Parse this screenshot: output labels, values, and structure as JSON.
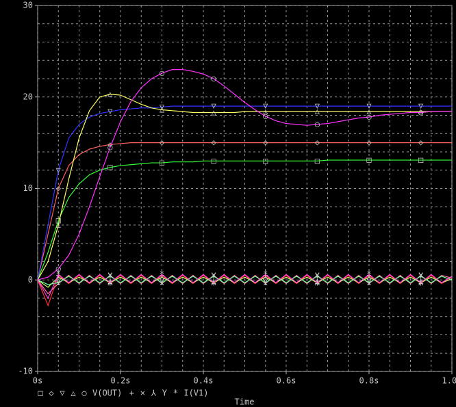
{
  "chart_data": {
    "type": "line",
    "xlabel": "Time",
    "x": [
      0,
      0.025,
      0.05,
      0.075,
      0.1,
      0.125,
      0.15,
      0.175,
      0.2,
      0.225,
      0.25,
      0.275,
      0.3,
      0.325,
      0.35,
      0.375,
      0.4,
      0.425,
      0.45,
      0.475,
      0.5,
      0.525,
      0.55,
      0.575,
      0.6,
      0.625,
      0.65,
      0.675,
      0.7,
      0.725,
      0.75,
      0.775,
      0.8,
      0.825,
      0.85,
      0.875,
      0.9,
      0.925,
      0.95,
      0.975,
      1
    ],
    "xlim": [
      0,
      1
    ],
    "xticks": [
      {
        "value": 0,
        "label": "0s"
      },
      {
        "value": 0.2,
        "label": "0.2s"
      },
      {
        "value": 0.4,
        "label": "0.4s"
      },
      {
        "value": 0.6,
        "label": "0.6s"
      },
      {
        "value": 0.8,
        "label": "0.8s"
      },
      {
        "value": 1,
        "label": "1.0s"
      }
    ],
    "ylim": [
      -10,
      30
    ],
    "yticks": [
      -10,
      0,
      10,
      20,
      30
    ],
    "grid": true,
    "groups": [
      {
        "name": "V(OUT)",
        "traces": [
          {
            "color": "#33ff33",
            "marker": "□",
            "values": [
              0,
              3,
              6.5,
              9,
              10.5,
              11.5,
              12,
              12.3,
              12.5,
              12.6,
              12.7,
              12.8,
              12.8,
              12.9,
              12.9,
              12.9,
              13,
              13,
              13,
              13,
              13,
              13,
              13,
              13,
              13,
              13,
              13,
              13,
              13.1,
              13.1,
              13.1,
              13.1,
              13.1,
              13.1,
              13.1,
              13.1,
              13.1,
              13.1,
              13.1,
              13.1,
              13.1
            ]
          },
          {
            "color": "#ff6060",
            "marker": "◇",
            "values": [
              0,
              5,
              10,
              12.5,
              13.7,
              14.3,
              14.6,
              14.8,
              14.9,
              15,
              15,
              15,
              15,
              15,
              15,
              15,
              15,
              15,
              15,
              15,
              15,
              15,
              15,
              15,
              15,
              15,
              15,
              15,
              15,
              15,
              15,
              15,
              15,
              15,
              15,
              15,
              15,
              15,
              15,
              15,
              15
            ]
          },
          {
            "color": "#3333ff",
            "marker": "▽",
            "values": [
              0,
              6,
              12,
              15.5,
              17,
              17.8,
              18.2,
              18.4,
              18.6,
              18.7,
              18.8,
              18.8,
              18.9,
              19,
              19,
              19,
              19,
              19,
              19,
              19,
              19,
              19,
              19,
              19,
              19,
              19,
              19,
              19,
              19,
              19,
              19,
              19,
              19,
              19,
              19,
              19,
              19,
              19,
              19,
              19,
              19
            ]
          },
          {
            "color": "#ffff66",
            "marker": "△",
            "values": [
              0,
              2,
              6,
              11,
              15.5,
              18.5,
              20,
              20.3,
              20.2,
              19.7,
              19.2,
              18.8,
              18.6,
              18.5,
              18.4,
              18.3,
              18.3,
              18.3,
              18.3,
              18.3,
              18.4,
              18.4,
              18.4,
              18.4,
              18.4,
              18.4,
              18.4,
              18.4,
              18.4,
              18.4,
              18.4,
              18.4,
              18.4,
              18.4,
              18.4,
              18.4,
              18.4,
              18.4,
              18.4,
              18.4,
              18.4
            ]
          },
          {
            "color": "#ff33ff",
            "marker": "○",
            "values": [
              0,
              0.3,
              1.2,
              2.7,
              5,
              8,
              11.3,
              14.5,
              17.3,
              19.5,
              21,
              22,
              22.6,
              23,
              23,
              22.8,
              22.5,
              22,
              21.2,
              20.3,
              19.4,
              18.6,
              17.9,
              17.4,
              17.1,
              17,
              16.9,
              17,
              17.1,
              17.3,
              17.5,
              17.7,
              17.8,
              18,
              18.1,
              18.2,
              18.3,
              18.3,
              18.4,
              18.4,
              18.4
            ]
          }
        ]
      },
      {
        "name": "I(V1)",
        "traces": [
          {
            "color": "#ff3333",
            "marker": "+",
            "values": [
              0,
              -2.8,
              0.5,
              -0.4,
              0.5,
              -0.4,
              0.5,
              -0.4,
              0.5,
              -0.4,
              0.5,
              -0.4,
              0.5,
              -0.4,
              0.5,
              -0.4,
              0.5,
              -0.4,
              0.5,
              -0.4,
              0.5,
              -0.4,
              0.5,
              -0.4,
              0.5,
              -0.4,
              0.5,
              -0.4,
              0.5,
              -0.4,
              0.5,
              -0.4,
              0.5,
              -0.4,
              0.5,
              -0.4,
              0.5,
              -0.4,
              0.5,
              -0.4,
              0.3
            ]
          },
          {
            "color": "#ff6fa0",
            "marker": "×",
            "values": [
              0,
              -1.5,
              -0.4,
              0.5,
              -0.4,
              0.5,
              -0.4,
              0.5,
              -0.4,
              0.5,
              -0.4,
              0.5,
              -0.4,
              0.5,
              -0.4,
              0.5,
              -0.4,
              0.5,
              -0.4,
              0.5,
              -0.4,
              0.5,
              -0.4,
              0.5,
              -0.4,
              0.5,
              -0.4,
              0.5,
              -0.4,
              0.5,
              -0.4,
              0.5,
              -0.4,
              0.5,
              -0.4,
              0.5,
              -0.4,
              0.5,
              -0.4,
              0.5,
              0.2
            ]
          },
          {
            "color": "#ccff66",
            "marker": "⅄",
            "values": [
              0,
              -0.8,
              0.3,
              -0.3,
              0.3,
              -0.3,
              0.3,
              -0.3,
              0.3,
              -0.3,
              0.3,
              -0.3,
              0.3,
              -0.3,
              0.3,
              -0.3,
              0.3,
              -0.3,
              0.3,
              -0.3,
              0.3,
              -0.3,
              0.3,
              -0.3,
              0.3,
              -0.3,
              0.3,
              -0.3,
              0.3,
              -0.3,
              0.3,
              -0.3,
              0.3,
              -0.3,
              0.3,
              -0.3,
              0.3,
              -0.3,
              0.3,
              -0.3,
              0.1
            ]
          },
          {
            "color": "#66ff99",
            "marker": "Y",
            "values": [
              0,
              -0.5,
              -0.3,
              0.4,
              -0.3,
              0.4,
              -0.3,
              0.4,
              -0.3,
              0.4,
              -0.3,
              0.4,
              -0.3,
              0.4,
              -0.3,
              0.4,
              -0.3,
              0.4,
              -0.3,
              0.4,
              -0.3,
              0.4,
              -0.3,
              0.4,
              -0.3,
              0.4,
              -0.3,
              0.4,
              -0.3,
              0.4,
              -0.3,
              0.4,
              -0.3,
              0.4,
              -0.3,
              0.4,
              -0.3,
              0.4,
              -0.3,
              0.4,
              0
            ]
          },
          {
            "color": "#ff44dd",
            "marker": "*",
            "values": [
              0,
              -2,
              0.6,
              -0.3,
              0.6,
              -0.3,
              0.6,
              -0.3,
              0.6,
              -0.3,
              0.6,
              -0.3,
              0.6,
              -0.3,
              0.6,
              -0.3,
              0.6,
              -0.3,
              0.6,
              -0.3,
              0.6,
              -0.3,
              0.6,
              -0.3,
              0.6,
              -0.3,
              0.6,
              -0.3,
              0.6,
              -0.3,
              0.6,
              -0.3,
              0.6,
              -0.3,
              0.6,
              -0.3,
              0.6,
              -0.3,
              0.6,
              -0.3,
              0.4
            ]
          }
        ]
      }
    ]
  }
}
